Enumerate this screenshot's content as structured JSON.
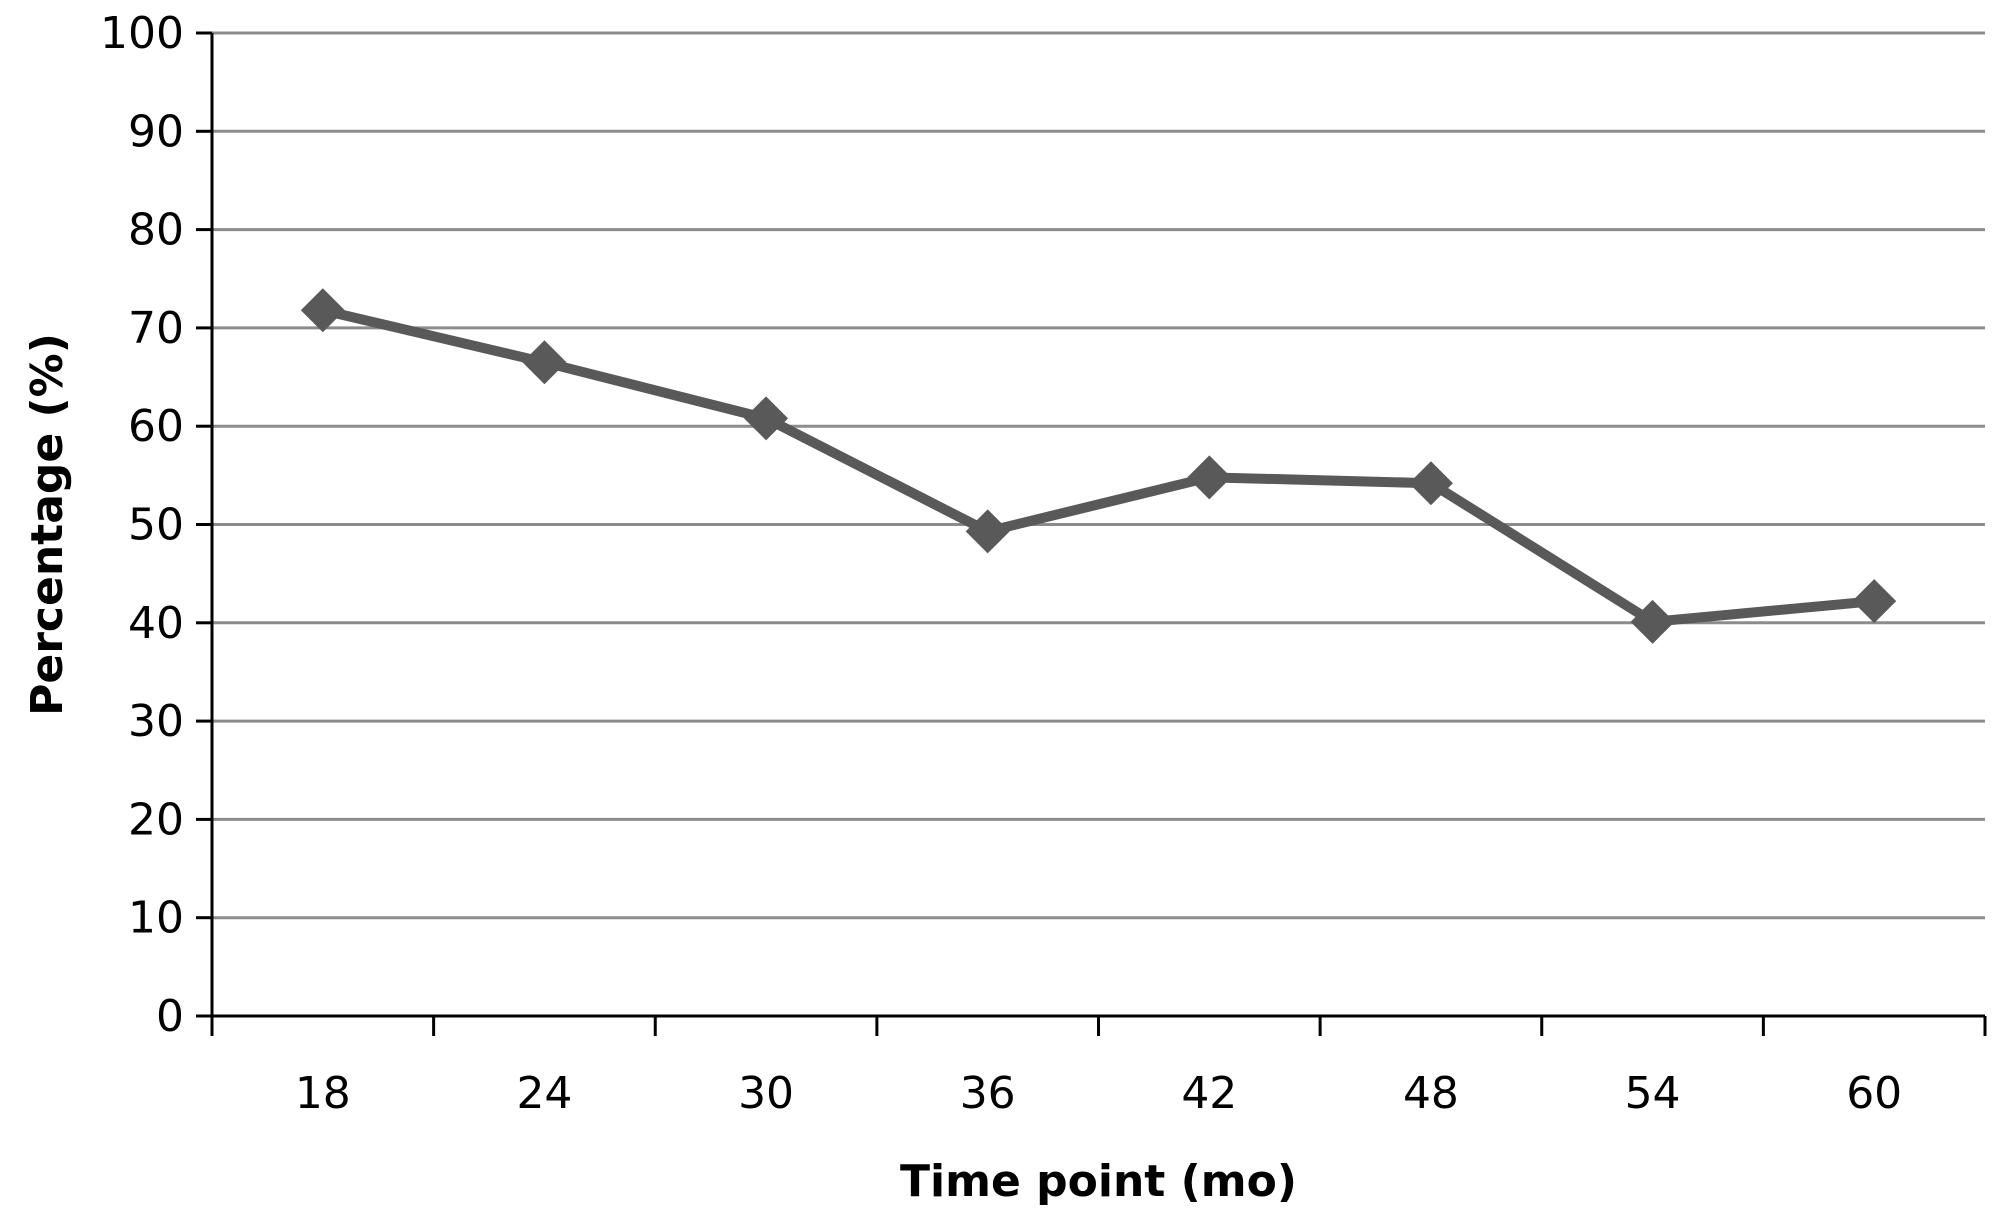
{
  "chart_data": {
    "type": "line",
    "title": "",
    "xlabel": "Time point (mo)",
    "ylabel": "Percentage (%)",
    "categories": [
      "18",
      "24",
      "30",
      "36",
      "42",
      "48",
      "54",
      "60"
    ],
    "series": [
      {
        "values": [
          71.8,
          66.5,
          60.8,
          49.3,
          54.8,
          54.2,
          40.1,
          42.2
        ],
        "color": "#595959",
        "marker": "diamond"
      }
    ],
    "ylim": [
      0,
      100
    ],
    "yticks": [
      "0",
      "10",
      "20",
      "30",
      "40",
      "50",
      "60",
      "70",
      "80",
      "90",
      "100"
    ],
    "grid": true,
    "legend": "none"
  },
  "colors": {
    "gridline": "#8c8c8c",
    "axis": "#000000",
    "series": "#595959"
  }
}
